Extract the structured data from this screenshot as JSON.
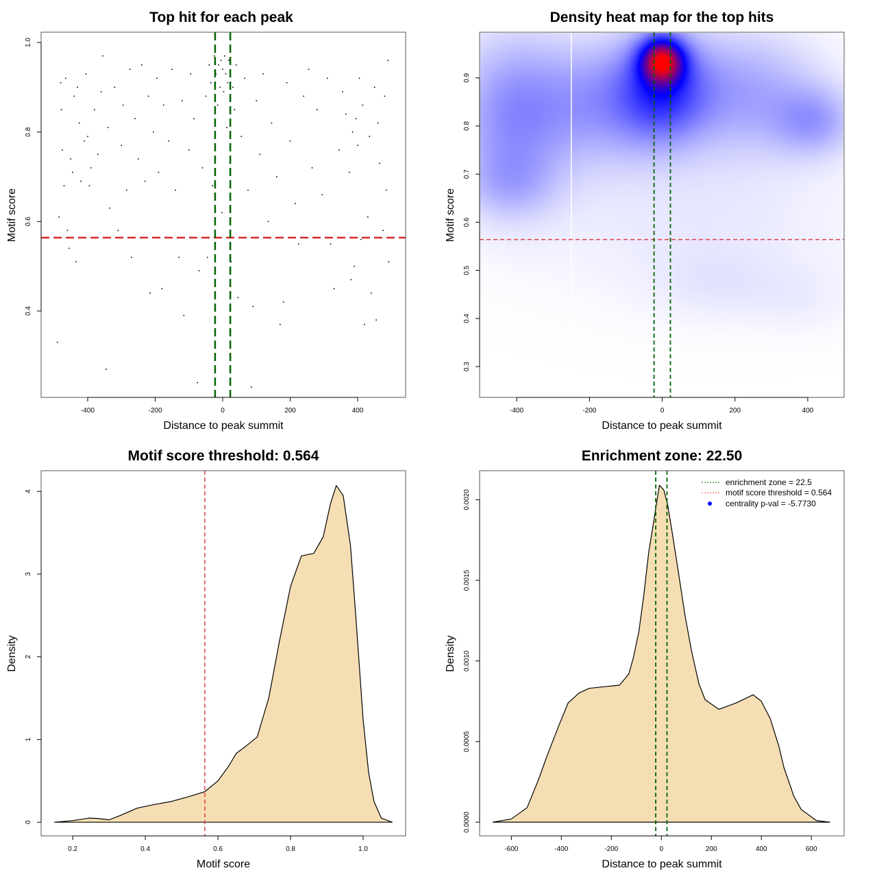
{
  "chart_data": [
    {
      "type": "scatter",
      "title": "Top hit for each peak",
      "xlabel": "Distance to peak summit",
      "ylabel": "Motif score",
      "xlim": [
        -538,
        542
      ],
      "ylim": [
        0.207,
        1.023
      ],
      "xticks": [
        -400,
        -200,
        0,
        200,
        400
      ],
      "yticks": [
        0.4,
        0.6,
        0.8,
        1.0
      ],
      "ytick_labels": [
        "0.4",
        "0.6",
        "0.8",
        "1.0"
      ],
      "enrichment_zone": [
        -22.5,
        22.5
      ],
      "threshold": 0.564,
      "points": [
        [
          -490,
          0.33
        ],
        [
          -485,
          0.61
        ],
        [
          -480,
          0.91
        ],
        [
          -478,
          0.85
        ],
        [
          -475,
          0.76
        ],
        [
          -470,
          0.68
        ],
        [
          -465,
          0.92
        ],
        [
          -460,
          0.58
        ],
        [
          -455,
          0.54
        ],
        [
          -450,
          0.74
        ],
        [
          -445,
          0.71
        ],
        [
          -440,
          0.88
        ],
        [
          -435,
          0.51
        ],
        [
          -430,
          0.9
        ],
        [
          -425,
          0.82
        ],
        [
          -420,
          0.69
        ],
        [
          -410,
          0.78
        ],
        [
          -405,
          0.93
        ],
        [
          -400,
          0.79
        ],
        [
          -395,
          0.68
        ],
        [
          -390,
          0.72
        ],
        [
          -380,
          0.85
        ],
        [
          -370,
          0.75
        ],
        [
          -360,
          0.89
        ],
        [
          -355,
          0.97
        ],
        [
          -345,
          0.27
        ],
        [
          -340,
          0.81
        ],
        [
          -335,
          0.63
        ],
        [
          -320,
          0.9
        ],
        [
          -310,
          0.58
        ],
        [
          -300,
          0.77
        ],
        [
          -295,
          0.86
        ],
        [
          -285,
          0.67
        ],
        [
          -275,
          0.94
        ],
        [
          -270,
          0.52
        ],
        [
          -260,
          0.83
        ],
        [
          -250,
          0.74
        ],
        [
          -240,
          0.95
        ],
        [
          -230,
          0.69
        ],
        [
          -220,
          0.88
        ],
        [
          -215,
          0.44
        ],
        [
          -205,
          0.8
        ],
        [
          -195,
          0.92
        ],
        [
          -190,
          0.71
        ],
        [
          -180,
          0.45
        ],
        [
          -175,
          0.86
        ],
        [
          -160,
          0.78
        ],
        [
          -150,
          0.94
        ],
        [
          -140,
          0.67
        ],
        [
          -130,
          0.52
        ],
        [
          -120,
          0.87
        ],
        [
          -115,
          0.39
        ],
        [
          -100,
          0.76
        ],
        [
          -95,
          0.93
        ],
        [
          -85,
          0.83
        ],
        [
          -75,
          0.24
        ],
        [
          -70,
          0.49
        ],
        [
          -60,
          0.72
        ],
        [
          -50,
          0.88
        ],
        [
          -45,
          0.52
        ],
        [
          -40,
          0.95
        ],
        [
          -35,
          0.91
        ],
        [
          -30,
          0.68
        ],
        [
          -25,
          0.97
        ],
        [
          -20,
          0.93
        ],
        [
          -15,
          0.86
        ],
        [
          -12,
          0.95
        ],
        [
          -8,
          0.9
        ],
        [
          -5,
          0.96
        ],
        [
          -2,
          0.62
        ],
        [
          0,
          0.94
        ],
        [
          3,
          0.89
        ],
        [
          6,
          0.97
        ],
        [
          9,
          0.93
        ],
        [
          12,
          0.81
        ],
        [
          15,
          0.91
        ],
        [
          18,
          0.96
        ],
        [
          21,
          0.73
        ],
        [
          25,
          0.51
        ],
        [
          30,
          0.9
        ],
        [
          35,
          0.85
        ],
        [
          40,
          0.95
        ],
        [
          45,
          0.43
        ],
        [
          55,
          0.79
        ],
        [
          65,
          0.92
        ],
        [
          75,
          0.67
        ],
        [
          85,
          0.23
        ],
        [
          90,
          0.41
        ],
        [
          100,
          0.87
        ],
        [
          110,
          0.75
        ],
        [
          120,
          0.93
        ],
        [
          135,
          0.6
        ],
        [
          145,
          0.82
        ],
        [
          160,
          0.7
        ],
        [
          170,
          0.37
        ],
        [
          180,
          0.42
        ],
        [
          190,
          0.91
        ],
        [
          200,
          0.78
        ],
        [
          215,
          0.64
        ],
        [
          225,
          0.55
        ],
        [
          240,
          0.88
        ],
        [
          255,
          0.94
        ],
        [
          265,
          0.72
        ],
        [
          280,
          0.85
        ],
        [
          295,
          0.66
        ],
        [
          310,
          0.92
        ],
        [
          320,
          0.55
        ],
        [
          330,
          0.45
        ],
        [
          345,
          0.76
        ],
        [
          355,
          0.89
        ],
        [
          365,
          0.84
        ],
        [
          375,
          0.71
        ],
        [
          380,
          0.47
        ],
        [
          385,
          0.8
        ],
        [
          390,
          0.5
        ],
        [
          395,
          0.83
        ],
        [
          400,
          0.77
        ],
        [
          405,
          0.92
        ],
        [
          410,
          0.56
        ],
        [
          415,
          0.86
        ],
        [
          420,
          0.37
        ],
        [
          430,
          0.61
        ],
        [
          435,
          0.79
        ],
        [
          440,
          0.44
        ],
        [
          450,
          0.9
        ],
        [
          455,
          0.38
        ],
        [
          460,
          0.82
        ],
        [
          465,
          0.73
        ],
        [
          475,
          0.58
        ],
        [
          480,
          0.88
        ],
        [
          485,
          0.67
        ],
        [
          490,
          0.96
        ],
        [
          492,
          0.51
        ]
      ]
    },
    {
      "type": "heatmap",
      "title": "Density heat map for the top hits",
      "xlabel": "Distance to peak summit",
      "ylabel": "Motif score",
      "xlim": [
        -502,
        500
      ],
      "ylim": [
        0.236,
        0.995
      ],
      "xticks": [
        -400,
        -200,
        0,
        200,
        400
      ],
      "yticks": [
        0.3,
        0.4,
        0.5,
        0.6,
        0.7,
        0.8,
        0.9
      ],
      "ytick_labels": [
        "0.3",
        "0.4",
        "0.5",
        "0.6",
        "0.7",
        "0.8",
        "0.9"
      ],
      "colorscale": [
        "#ffffff",
        "#0000ff",
        "#ff0000"
      ],
      "enrichment_zone": [
        -22.5,
        22.5
      ],
      "threshold": 0.564,
      "density_components": [
        {
          "x": 0,
          "y": 0.938,
          "sx": 42,
          "sy": 0.033,
          "w": 1.0
        },
        {
          "x": 0,
          "y": 0.88,
          "sx": 85,
          "sy": 0.075,
          "w": 0.5
        },
        {
          "x": -420,
          "y": 0.82,
          "sx": 110,
          "sy": 0.12,
          "w": 0.32
        },
        {
          "x": -420,
          "y": 0.68,
          "sx": 90,
          "sy": 0.05,
          "w": 0.14
        },
        {
          "x": 420,
          "y": 0.81,
          "sx": 80,
          "sy": 0.05,
          "w": 0.25
        },
        {
          "x": -170,
          "y": 0.85,
          "sx": 140,
          "sy": 0.09,
          "w": 0.3
        },
        {
          "x": 220,
          "y": 0.87,
          "sx": 150,
          "sy": 0.09,
          "w": 0.28
        },
        {
          "x": 100,
          "y": 0.6,
          "sx": 320,
          "sy": 0.12,
          "w": 0.07
        },
        {
          "x": 150,
          "y": 0.47,
          "sx": 120,
          "sy": 0.05,
          "w": 0.05
        },
        {
          "x": 380,
          "y": 0.44,
          "sx": 100,
          "sy": 0.05,
          "w": 0.04
        }
      ],
      "gap_line_x": -250
    },
    {
      "type": "area",
      "title": "Motif score threshold: 0.564",
      "xlabel": "Motif score",
      "ylabel": "Density",
      "xlim": [
        0.113,
        1.117
      ],
      "ylim": [
        -0.165,
        4.25
      ],
      "xticks": [
        0.2,
        0.4,
        0.6,
        0.8,
        1.0
      ],
      "xtick_labels": [
        "0.2",
        "0.4",
        "0.6",
        "0.8",
        "1.0"
      ],
      "yticks": [
        0,
        1,
        2,
        3,
        4
      ],
      "ytick_labels": [
        "0",
        "1",
        "2",
        "3",
        "4"
      ],
      "fill": "#f5deb3",
      "threshold": 0.564,
      "x": [
        0.15,
        0.2,
        0.245,
        0.27,
        0.3,
        0.33,
        0.377,
        0.42,
        0.47,
        0.52,
        0.564,
        0.6,
        0.63,
        0.65,
        0.68,
        0.708,
        0.74,
        0.77,
        0.8,
        0.83,
        0.864,
        0.89,
        0.91,
        0.926,
        0.945,
        0.965,
        0.98,
        1.0,
        1.015,
        1.03,
        1.05,
        1.08
      ],
      "y": [
        0,
        0.02,
        0.05,
        0.045,
        0.03,
        0.08,
        0.17,
        0.21,
        0.25,
        0.31,
        0.37,
        0.5,
        0.68,
        0.83,
        0.93,
        1.03,
        1.5,
        2.2,
        2.85,
        3.22,
        3.25,
        3.45,
        3.85,
        4.07,
        3.95,
        3.35,
        2.48,
        1.24,
        0.6,
        0.25,
        0.05,
        0
      ]
    },
    {
      "type": "area",
      "title": "Enrichment zone: 22.50",
      "xlabel": "Distance to peak summit",
      "ylabel": "Density",
      "xlim": [
        -727,
        731
      ],
      "ylim": [
        -8.503e-05,
        0.00218
      ],
      "xticks": [
        -600,
        -400,
        -200,
        0,
        200,
        400,
        600
      ],
      "xtick_labels": [
        "-600",
        "-400",
        "-200",
        "0",
        "200",
        "400",
        "600"
      ],
      "yticks": [
        0,
        0.0005,
        0.001,
        0.0015,
        0.002
      ],
      "ytick_labels": [
        "0.0000",
        "0.0005",
        "0.0010",
        "0.0015",
        "0.0020"
      ],
      "fill": "#f5deb3",
      "enrichment_zone": [
        -22.5,
        22.5
      ],
      "x": [
        -674,
        -600,
        -537,
        -490,
        -455,
        -410,
        -373,
        -330,
        -290,
        -230,
        -167,
        -130,
        -112,
        -90,
        -71,
        -50,
        -30,
        -8,
        10,
        25,
        45,
        66,
        95,
        121,
        150,
        175,
        230,
        299,
        367,
        400,
        436,
        470,
        490,
        530,
        559,
        620,
        674
      ],
      "y": [
        0,
        2e-05,
        9e-05,
        0.00027,
        0.00042,
        0.0006,
        0.00074,
        0.0008,
        0.00083,
        0.00084,
        0.00085,
        0.00092,
        0.00102,
        0.00118,
        0.0014,
        0.00168,
        0.00187,
        0.00209,
        0.00206,
        0.00197,
        0.00178,
        0.00157,
        0.00128,
        0.00106,
        0.00086,
        0.00076,
        0.0007,
        0.00074,
        0.00079,
        0.00075,
        0.00064,
        0.00047,
        0.00034,
        0.00016,
        8e-05,
        1e-05,
        0
      ],
      "legend": {
        "position": "top-right",
        "items": [
          {
            "label": "enrichment zone = 22.5",
            "color": "#006400",
            "style": "dotted-line"
          },
          {
            "label": "motif score threshold = 0.564",
            "color": "#ff4040",
            "style": "dotted-line"
          },
          {
            "label": "centrality p-val = -5.7730",
            "color": "#0000ff",
            "style": "point"
          }
        ]
      }
    }
  ]
}
